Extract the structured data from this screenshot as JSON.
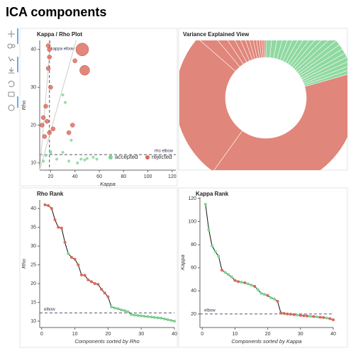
{
  "title": "ICA components",
  "chart_data": [
    {
      "type": "scatter",
      "title": "Kappa / Rho Plot",
      "x_label": "Kappa",
      "y_label": "Rho",
      "xlim": [
        11,
        123
      ],
      "ylim": [
        8.1,
        42.4
      ],
      "xticks": [
        20,
        40,
        60,
        80,
        100,
        120
      ],
      "yticks": [
        10,
        20,
        30,
        40
      ],
      "series": [
        {
          "name": "accepted",
          "color": "#7ad68f",
          "x": [
            14,
            16,
            20,
            25,
            30,
            30,
            35,
            42,
            45,
            48,
            50,
            55,
            58,
            37,
            32,
            20
          ],
          "values": [
            10.5,
            12,
            12.5,
            11,
            12.8,
            28,
            10.5,
            10,
            11,
            10.8,
            11.2,
            11.5,
            11,
            16,
            26,
            13
          ]
        },
        {
          "name": "rejected",
          "color": "#d9695a",
          "x": [
            18,
            19,
            19,
            18,
            20,
            16,
            14,
            17,
            13,
            19,
            15,
            46,
            48,
            40,
            38,
            35,
            22
          ],
          "values": [
            41,
            40,
            38,
            35,
            30,
            25,
            22,
            21,
            20,
            18,
            17,
            40,
            34.5,
            37,
            20,
            18,
            19
          ],
          "sizes": [
            3,
            3,
            3,
            3,
            3,
            3,
            3,
            3,
            3,
            3,
            3,
            9,
            7,
            3,
            3,
            3,
            3
          ]
        }
      ],
      "annotations": [
        {
          "text": "kappa elbow",
          "axis": "x",
          "value": 19
        },
        {
          "text": "rho elbow",
          "axis": "y",
          "value": 12.2
        }
      ],
      "legend": "bottom-right"
    },
    {
      "type": "donut",
      "title": "Variance Explained View",
      "values": [
        1.6,
        1.5,
        1.4,
        1.3,
        1.2,
        1.2,
        1.1,
        1.1,
        1,
        1,
        1,
        1,
        0.9,
        0.9,
        0.9,
        0.8,
        0.8,
        0.8,
        0.7,
        0.7,
        40,
        27,
        2.5,
        1.8,
        1.5,
        1.3,
        1.2,
        1,
        1,
        0.9,
        0.8,
        0.7,
        0.6,
        0.5
      ],
      "colors": [
        "#8fd9a0",
        "#8fd9a0",
        "#8fd9a0",
        "#8fd9a0",
        "#8fd9a0",
        "#8fd9a0",
        "#8fd9a0",
        "#8fd9a0",
        "#8fd9a0",
        "#8fd9a0",
        "#8fd9a0",
        "#8fd9a0",
        "#8fd9a0",
        "#8fd9a0",
        "#8fd9a0",
        "#8fd9a0",
        "#8fd9a0",
        "#8fd9a0",
        "#8fd9a0",
        "#8fd9a0",
        "#e0867a",
        "#e0867a",
        "#e0867a",
        "#e0867a",
        "#e0867a",
        "#e0867a",
        "#e0867a",
        "#e0867a",
        "#e0867a",
        "#e0867a",
        "#e0867a",
        "#e0867a",
        "#e0867a",
        "#e0867a"
      ]
    },
    {
      "type": "line",
      "title": "Rho Rank",
      "x_label": "Components sorted by Rho",
      "y_label": "Rho",
      "xlim": [
        -0.6,
        40
      ],
      "ylim": [
        8.3,
        42.3
      ],
      "xticks": [
        0,
        10,
        20,
        30,
        40
      ],
      "yticks": [
        10,
        15,
        20,
        25,
        30,
        35,
        40
      ],
      "x": [
        1,
        2,
        3,
        4,
        5,
        6,
        7,
        8,
        9,
        10,
        11,
        12,
        13,
        14,
        15,
        16,
        17,
        18,
        19,
        20,
        21,
        22,
        23,
        24,
        25,
        26,
        27,
        28,
        29,
        30,
        31,
        32,
        33,
        34,
        35,
        36,
        37,
        38,
        39,
        40
      ],
      "values": [
        41,
        40.8,
        40,
        37,
        35,
        34.8,
        31,
        28,
        27,
        26.5,
        25,
        22.3,
        22.2,
        21,
        20.5,
        20,
        19.8,
        18.5,
        17.5,
        16.5,
        13.8,
        13.5,
        13.3,
        13,
        12.8,
        12.5,
        11.8,
        11.6,
        11.5,
        11.4,
        11.3,
        11.2,
        11.1,
        11,
        10.9,
        10.8,
        10.6,
        10.4,
        10.2,
        10
      ],
      "colors": [
        "#d9695a",
        "#d9695a",
        "#d9695a",
        "#d9695a",
        "#d9695a",
        "#d9695a",
        "#d9695a",
        "#7ad68f",
        "#d9695a",
        "#d9695a",
        "#d9695a",
        "#d9695a",
        "#d9695a",
        "#d9695a",
        "#d9695a",
        "#d9695a",
        "#d9695a",
        "#d9695a",
        "#d9695a",
        "#d9695a",
        "#7ad68f",
        "#7ad68f",
        "#7ad68f",
        "#7ad68f",
        "#7ad68f",
        "#7ad68f",
        "#7ad68f",
        "#7ad68f",
        "#7ad68f",
        "#7ad68f",
        "#7ad68f",
        "#7ad68f",
        "#7ad68f",
        "#7ad68f",
        "#7ad68f",
        "#7ad68f",
        "#7ad68f",
        "#7ad68f",
        "#7ad68f",
        "#7ad68f"
      ],
      "annotations": [
        {
          "text": "elbow",
          "axis": "y",
          "value": 12.2
        }
      ]
    },
    {
      "type": "line",
      "title": "Kappa Rank",
      "x_label": "Components sorted by Kappa",
      "y_label": "Kappa",
      "xlim": [
        -0.7,
        40
      ],
      "ylim": [
        8.3,
        121.2
      ],
      "xticks": [
        0,
        10,
        20,
        30,
        40
      ],
      "yticks": [
        20,
        40,
        60,
        80,
        100,
        120
      ],
      "x": [
        1,
        2,
        3,
        4,
        5,
        6,
        7,
        8,
        9,
        10,
        11,
        12,
        13,
        14,
        15,
        16,
        17,
        18,
        19,
        20,
        21,
        22,
        23,
        24,
        25,
        26,
        27,
        28,
        29,
        30,
        31,
        32,
        33,
        34,
        35,
        36,
        37,
        38,
        39,
        40
      ],
      "values": [
        115,
        93,
        79,
        74,
        70,
        58,
        56,
        54,
        52,
        49,
        48,
        47.5,
        47,
        46,
        45,
        44,
        41,
        38,
        37,
        36,
        34,
        33,
        31,
        21,
        20.5,
        20,
        19.8,
        19.5,
        19,
        18.8,
        18.5,
        18.3,
        18,
        17.8,
        17.5,
        17.2,
        17,
        16.5,
        16,
        15
      ],
      "colors": [
        "#7ad68f",
        "#7ad68f",
        "#7ad68f",
        "#7ad68f",
        "#7ad68f",
        "#d9695a",
        "#7ad68f",
        "#7ad68f",
        "#7ad68f",
        "#d9695a",
        "#d9695a",
        "#7ad68f",
        "#d9695a",
        "#7ad68f",
        "#7ad68f",
        "#d9695a",
        "#7ad68f",
        "#7ad68f",
        "#7ad68f",
        "#d9695a",
        "#7ad68f",
        "#7ad68f",
        "#d9695a",
        "#d9695a",
        "#d9695a",
        "#d9695a",
        "#d9695a",
        "#d9695a",
        "#7ad68f",
        "#d9695a",
        "#d9695a",
        "#d9695a",
        "#7ad68f",
        "#d9695a",
        "#7ad68f",
        "#d9695a",
        "#d9695a",
        "#7ad68f",
        "#d9695a",
        "#d9695a"
      ],
      "annotations": [
        {
          "text": "elbow",
          "axis": "y",
          "value": 20
        }
      ]
    }
  ]
}
